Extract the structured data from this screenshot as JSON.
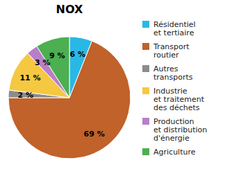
{
  "chart_data": {
    "type": "pie",
    "title": "NOX",
    "categories": [
      "Résidentiel\net tertiaire",
      "Transport\nroutier",
      "Autres\ntransports",
      "Industrie\net traitement\ndes déchets",
      "Production\net distribution\nd'énergie",
      "Agriculture"
    ],
    "values": [
      6,
      69,
      2,
      11,
      3,
      9
    ],
    "value_labels": [
      "6 %",
      "69 %",
      "2 %",
      "11 %",
      "3 %",
      "9 %"
    ],
    "colors": [
      "#29b8e5",
      "#c0622a",
      "#8c8c8c",
      "#f5c842",
      "#b87fc9",
      "#4caf50"
    ],
    "data_labels": true,
    "legend": "right"
  }
}
